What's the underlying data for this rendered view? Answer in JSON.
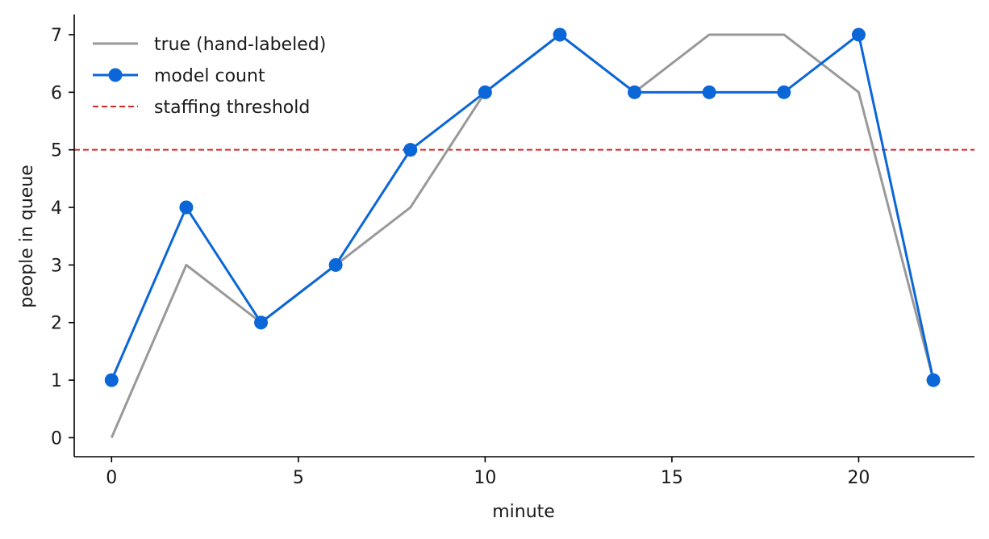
{
  "chart_data": {
    "type": "line",
    "xlabel": "minute",
    "ylabel": "people in queue",
    "xlim": [
      -1,
      23.1
    ],
    "ylim": [
      -0.33,
      7.35
    ],
    "xticks": [
      0,
      5,
      10,
      15,
      20
    ],
    "yticks": [
      0,
      1,
      2,
      3,
      4,
      5,
      6,
      7
    ],
    "grid": false,
    "legend_position": "top-left",
    "series": [
      {
        "name": "true (hand-labeled)",
        "color": "#999999",
        "marker": "none",
        "x": [
          0,
          2,
          4,
          6,
          8,
          10,
          12,
          14,
          16,
          18,
          20,
          22
        ],
        "y": [
          0,
          3,
          2,
          3,
          4,
          6,
          7,
          6,
          7,
          7,
          6,
          1
        ]
      },
      {
        "name": "model count",
        "color": "#0b66d8",
        "marker": "circle",
        "x": [
          0,
          2,
          4,
          6,
          8,
          10,
          12,
          14,
          16,
          18,
          20,
          22
        ],
        "y": [
          1,
          4,
          2,
          3,
          5,
          6,
          7,
          6,
          6,
          6,
          7,
          1
        ]
      }
    ],
    "reference_lines": [
      {
        "name": "staffing threshold",
        "orientation": "horizontal",
        "y": 5,
        "color": "#d62728",
        "style": "dashed"
      }
    ]
  }
}
